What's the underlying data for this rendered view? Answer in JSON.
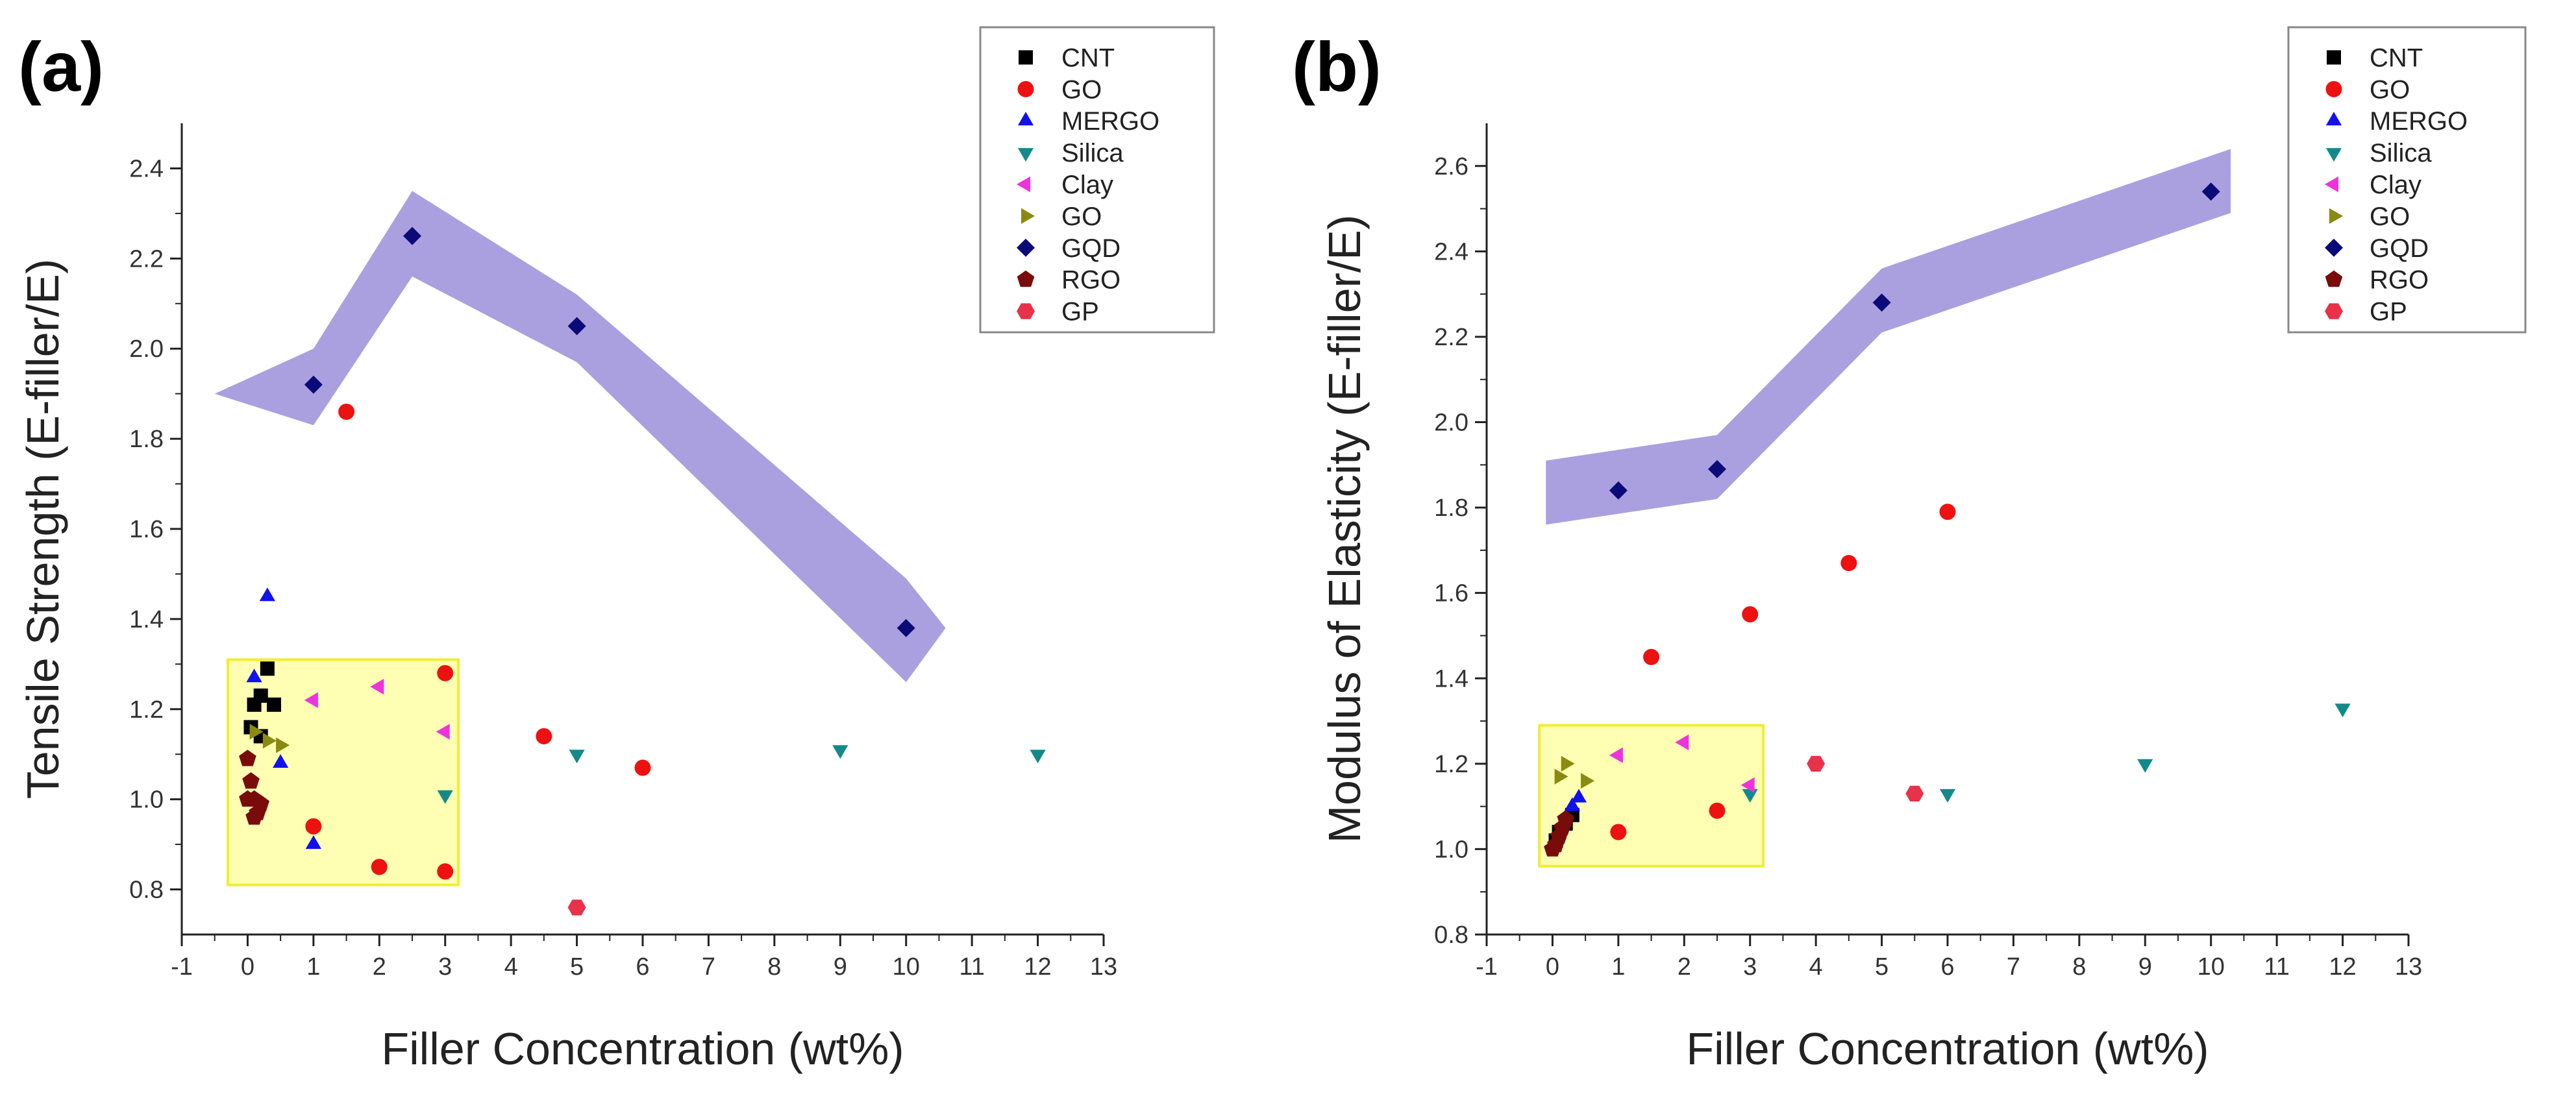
{
  "chart_data": [
    {
      "type": "scatter",
      "panel_label": "(a)",
      "xlabel": "Filler Concentration (wt%)",
      "ylabel": "Tensile Strength (E-filler/E)",
      "xlim": [
        -1,
        13
      ],
      "ylim": [
        0.7,
        2.5
      ],
      "x_ticks": [
        -1,
        0,
        1,
        2,
        3,
        4,
        5,
        6,
        7,
        8,
        9,
        10,
        11,
        12,
        13
      ],
      "y_ticks": [
        0.8,
        1.0,
        1.2,
        1.4,
        1.6,
        1.8,
        2.0,
        2.2,
        2.4
      ],
      "y_tick_decimals": 1,
      "legend_position": "top-right",
      "highlight_band": {
        "color": "#9b8fd9",
        "lower": [
          [
            -0.5,
            1.9
          ],
          [
            1,
            1.83
          ],
          [
            2.5,
            2.16
          ],
          [
            5,
            1.97
          ],
          [
            10,
            1.26
          ],
          [
            10.6,
            1.38
          ]
        ],
        "upper": [
          [
            -0.5,
            1.9
          ],
          [
            1,
            2.0
          ],
          [
            2.5,
            2.35
          ],
          [
            5,
            2.12
          ],
          [
            10,
            1.49
          ],
          [
            10.6,
            1.38
          ]
        ]
      },
      "highlight_box": {
        "x": [
          -0.3,
          3.2
        ],
        "y": [
          0.81,
          1.31
        ],
        "fill": "#ffff99",
        "stroke": "#eeee33"
      },
      "series": [
        {
          "name": "CNT",
          "marker": "square",
          "color": "#000000",
          "points": [
            [
              0.05,
              1.16
            ],
            [
              0.1,
              1.21
            ],
            [
              0.2,
              1.23
            ],
            [
              0.3,
              1.29
            ],
            [
              0.4,
              1.21
            ],
            [
              0.2,
              1.14
            ]
          ]
        },
        {
          "name": "GO",
          "marker": "circle",
          "color": "#ee1111",
          "points": [
            [
              1.5,
              1.86
            ],
            [
              3,
              1.28
            ],
            [
              4.5,
              1.14
            ],
            [
              6,
              1.07
            ],
            [
              1,
              0.94
            ],
            [
              2,
              0.85
            ],
            [
              3,
              0.84
            ]
          ]
        },
        {
          "name": "MERGO",
          "marker": "triangle-up",
          "color": "#1111ee",
          "points": [
            [
              0.3,
              1.45
            ],
            [
              0.1,
              1.27
            ],
            [
              0.5,
              1.08
            ],
            [
              1,
              0.9
            ]
          ]
        },
        {
          "name": "Silica",
          "marker": "triangle-down",
          "color": "#138a8a",
          "points": [
            [
              5,
              1.1
            ],
            [
              9,
              1.11
            ],
            [
              12,
              1.1
            ],
            [
              3,
              1.01
            ]
          ]
        },
        {
          "name": "Clay",
          "marker": "triangle-left",
          "color": "#ee33dd",
          "points": [
            [
              1,
              1.22
            ],
            [
              2,
              1.25
            ],
            [
              3,
              1.15
            ]
          ]
        },
        {
          "name": "GO",
          "marker": "triangle-right",
          "color": "#8a8a11",
          "points": [
            [
              0.1,
              1.15
            ],
            [
              0.3,
              1.13
            ],
            [
              0.5,
              1.12
            ]
          ]
        },
        {
          "name": "GQD",
          "marker": "diamond",
          "color": "#0a0a78",
          "points": [
            [
              1,
              1.92
            ],
            [
              2.5,
              2.25
            ],
            [
              5,
              2.05
            ],
            [
              10,
              1.38
            ]
          ]
        },
        {
          "name": "RGO",
          "marker": "pentagon",
          "color": "#7a0b0b",
          "points": [
            [
              0,
              1.09
            ],
            [
              0.05,
              1.04
            ],
            [
              0.1,
              1.0
            ],
            [
              0.15,
              0.97
            ],
            [
              0.2,
              0.99
            ],
            [
              0,
              1.0
            ],
            [
              0.1,
              0.96
            ]
          ]
        },
        {
          "name": "GP",
          "marker": "hexagon",
          "color": "#e8324a",
          "points": [
            [
              5,
              0.76
            ]
          ]
        }
      ]
    },
    {
      "type": "scatter",
      "panel_label": "(b)",
      "xlabel": "Filler Concentration (wt%)",
      "ylabel": "Modulus of Elasticity (E-filler/E)",
      "xlim": [
        -1,
        13
      ],
      "ylim": [
        0.8,
        2.7
      ],
      "x_ticks": [
        -1,
        0,
        1,
        2,
        3,
        4,
        5,
        6,
        7,
        8,
        9,
        10,
        11,
        12,
        13
      ],
      "y_ticks": [
        0.8,
        1.0,
        1.2,
        1.4,
        1.6,
        1.8,
        2.0,
        2.2,
        2.4,
        2.6
      ],
      "y_tick_decimals": 1,
      "legend_position": "top-right",
      "highlight_band": {
        "color": "#9b8fd9",
        "lower": [
          [
            -0.1,
            1.76
          ],
          [
            2.5,
            1.82
          ],
          [
            5,
            2.21
          ],
          [
            10.3,
            2.49
          ]
        ],
        "upper": [
          [
            -0.1,
            1.91
          ],
          [
            2.5,
            1.97
          ],
          [
            5,
            2.36
          ],
          [
            10.3,
            2.64
          ]
        ]
      },
      "highlight_box": {
        "x": [
          -0.2,
          3.2
        ],
        "y": [
          0.96,
          1.29
        ],
        "fill": "#ffff99",
        "stroke": "#eeee33"
      },
      "series": [
        {
          "name": "CNT",
          "marker": "square",
          "color": "#000000",
          "points": [
            [
              0.05,
              1.02
            ],
            [
              0.1,
              1.04
            ],
            [
              0.2,
              1.06
            ],
            [
              0.3,
              1.08
            ]
          ]
        },
        {
          "name": "GO",
          "marker": "circle",
          "color": "#ee1111",
          "points": [
            [
              1.5,
              1.45
            ],
            [
              3,
              1.55
            ],
            [
              4.5,
              1.67
            ],
            [
              6,
              1.79
            ],
            [
              1,
              1.04
            ],
            [
              2.5,
              1.09
            ]
          ]
        },
        {
          "name": "MERGO",
          "marker": "triangle-up",
          "color": "#1111ee",
          "points": [
            [
              0.3,
              1.1
            ],
            [
              0.4,
              1.12
            ]
          ]
        },
        {
          "name": "Silica",
          "marker": "triangle-down",
          "color": "#138a8a",
          "points": [
            [
              3,
              1.13
            ],
            [
              6,
              1.13
            ],
            [
              9,
              1.2
            ],
            [
              12,
              1.33
            ]
          ]
        },
        {
          "name": "Clay",
          "marker": "triangle-left",
          "color": "#ee33dd",
          "points": [
            [
              1,
              1.22
            ],
            [
              2,
              1.25
            ],
            [
              3,
              1.15
            ]
          ]
        },
        {
          "name": "GO",
          "marker": "triangle-right",
          "color": "#8a8a11",
          "points": [
            [
              0.1,
              1.17
            ],
            [
              0.2,
              1.2
            ],
            [
              0.5,
              1.16
            ]
          ]
        },
        {
          "name": "GQD",
          "marker": "diamond",
          "color": "#0a0a78",
          "points": [
            [
              1,
              1.84
            ],
            [
              2.5,
              1.89
            ],
            [
              5,
              2.28
            ],
            [
              10,
              2.54
            ]
          ]
        },
        {
          "name": "RGO",
          "marker": "pentagon",
          "color": "#7a0b0b",
          "points": [
            [
              0,
              1.0
            ],
            [
              0.05,
              1.01
            ],
            [
              0.1,
              1.03
            ],
            [
              0.15,
              1.05
            ],
            [
              0.2,
              1.07
            ]
          ]
        },
        {
          "name": "GP",
          "marker": "hexagon",
          "color": "#e8324a",
          "points": [
            [
              4,
              1.2
            ],
            [
              5.5,
              1.13
            ]
          ]
        }
      ]
    }
  ]
}
